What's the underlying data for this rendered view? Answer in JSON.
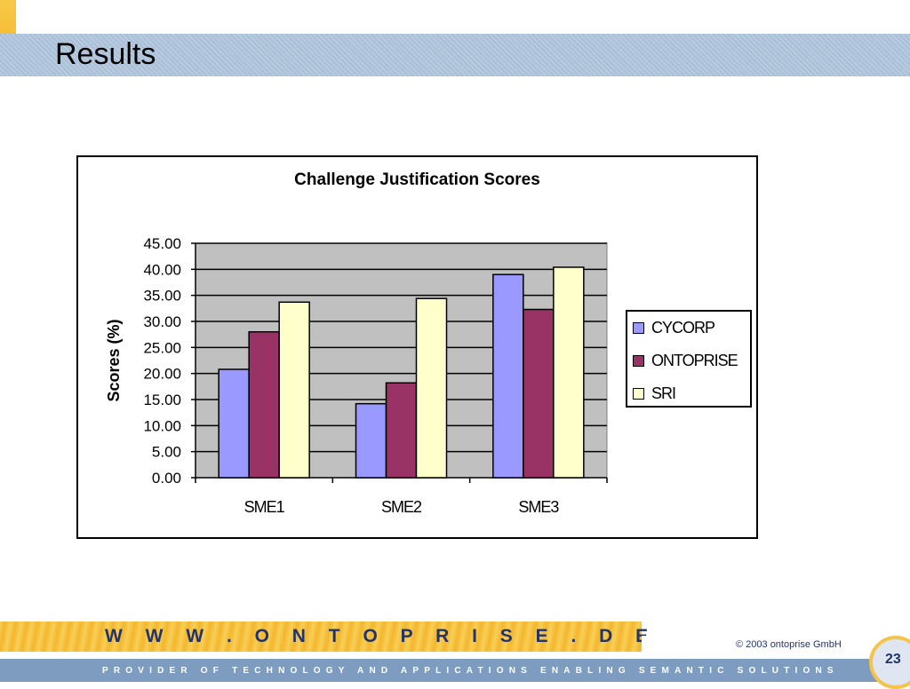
{
  "slide": {
    "title": "Results",
    "footer_url": "W W W . O N T O P R I S E . D E",
    "copyright": "© 2003 ontoprise GmbH",
    "tagline": "PROVIDER OF TECHNOLOGY AND APPLICATIONS ENABLING SEMANTIC SOLUTIONS",
    "page_number": "23"
  },
  "chart_data": {
    "type": "bar",
    "title": "Challenge Justification Scores",
    "xlabel": "",
    "ylabel": "Scores (%)",
    "ylim": [
      0,
      45
    ],
    "yticks": [
      "0.00",
      "5.00",
      "10.00",
      "15.00",
      "20.00",
      "25.00",
      "30.00",
      "35.00",
      "40.00",
      "45.00"
    ],
    "categories": [
      "SME1",
      "SME2",
      "SME3"
    ],
    "series": [
      {
        "name": "CYCORP",
        "color": "#9999ff",
        "values": [
          20.8,
          14.2,
          39.0
        ]
      },
      {
        "name": "ONTOPRISE",
        "color": "#993366",
        "values": [
          28.0,
          18.2,
          32.3
        ]
      },
      {
        "name": "SRI",
        "color": "#ffffcc",
        "values": [
          33.7,
          34.4,
          40.4
        ]
      }
    ],
    "plot_background": "#c0c0c0",
    "grid": true,
    "legend_position": "right"
  }
}
